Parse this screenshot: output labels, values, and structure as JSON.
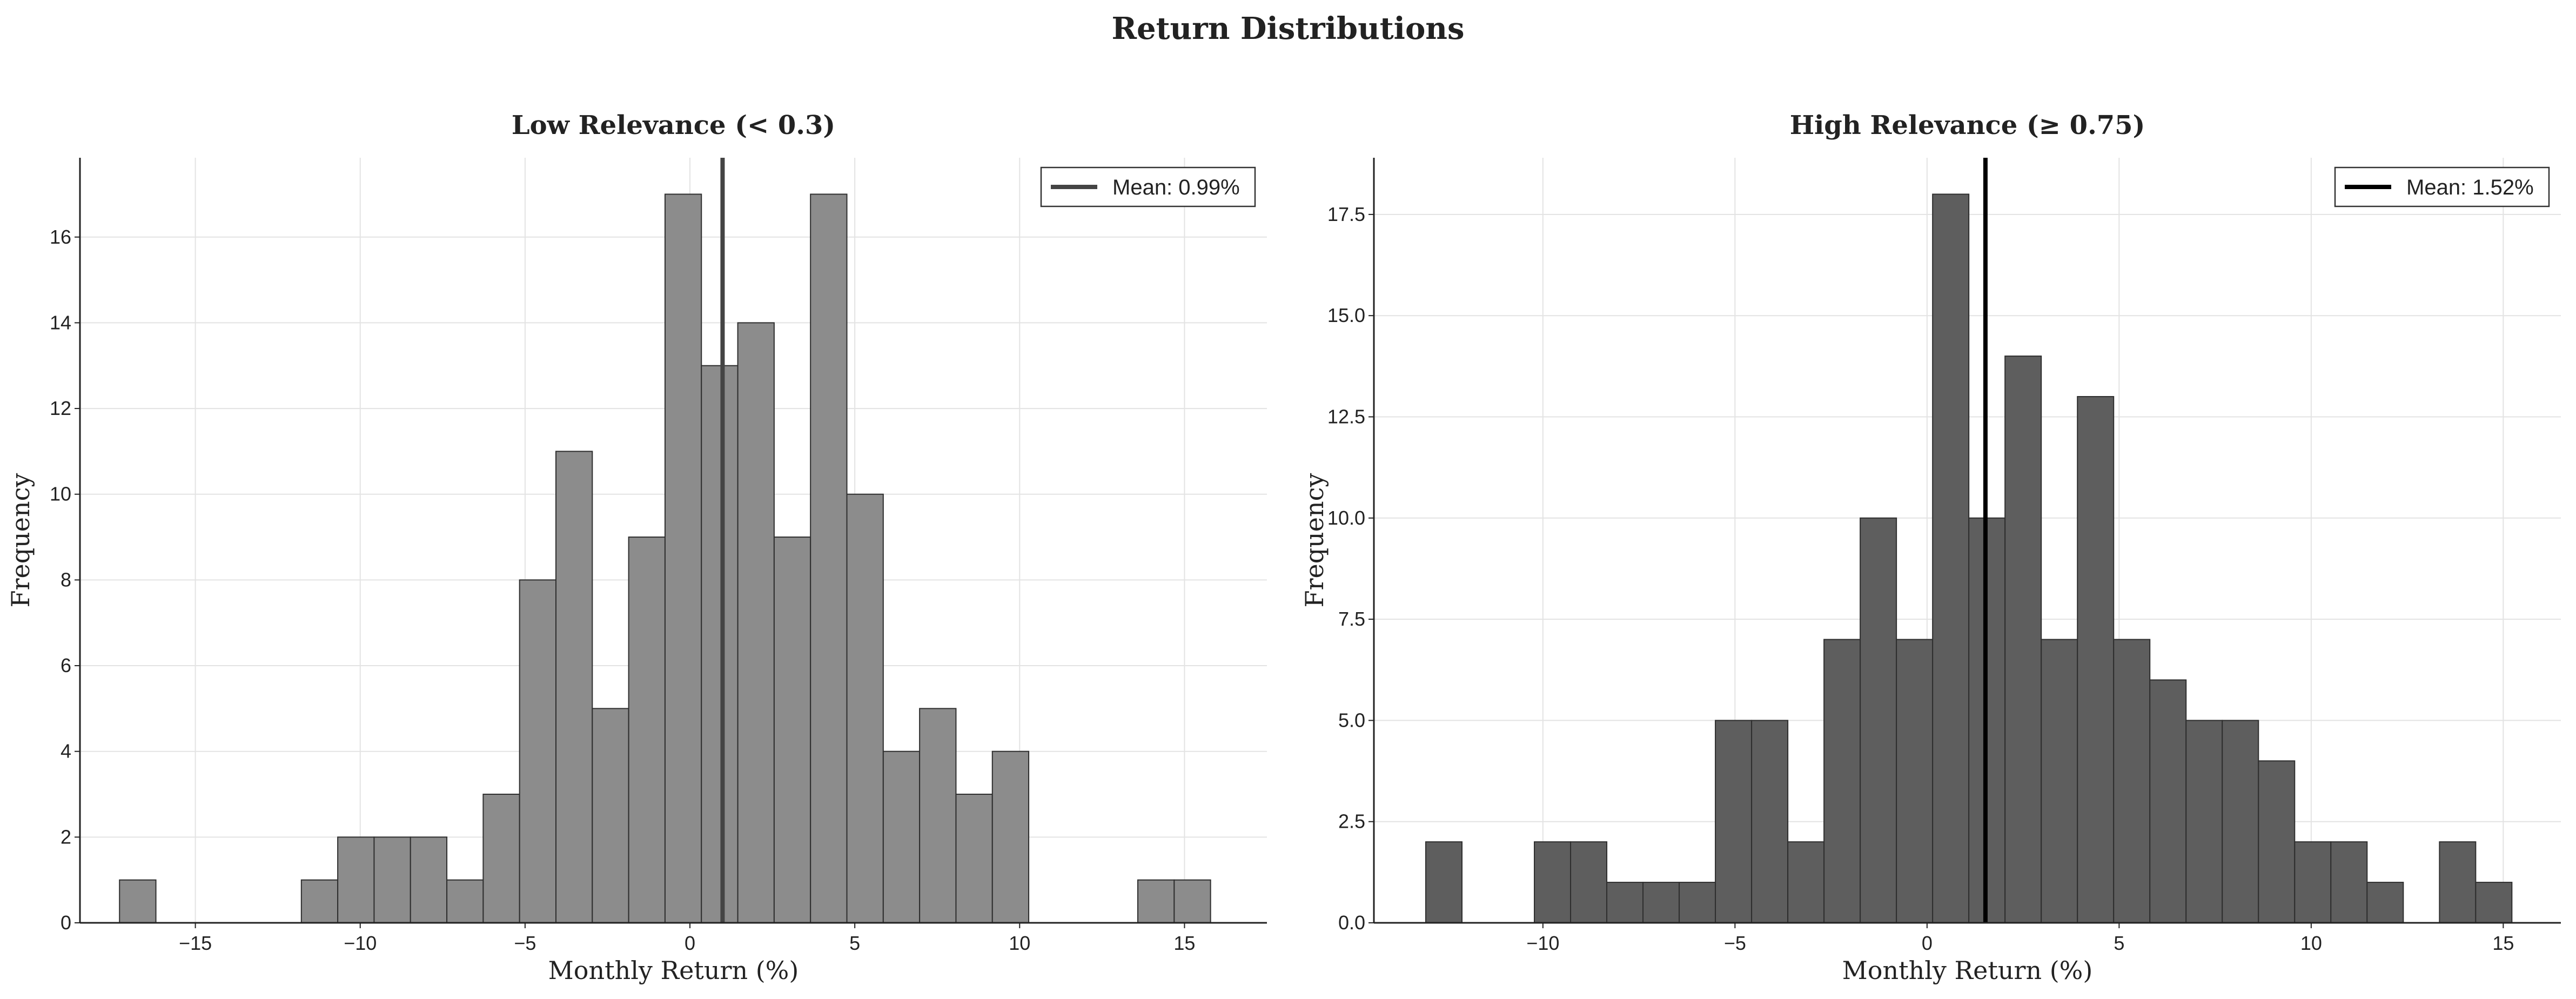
{
  "figure": {
    "title": "Return Distributions"
  },
  "colors": {
    "low_bar": "#8c8c8c",
    "high_bar": "#5e5e5e",
    "bar_edge": "#2e2e2e",
    "low_mean_line": "#444444",
    "high_mean_line": "#000000"
  },
  "chart_data": [
    {
      "type": "bar",
      "subtype": "histogram",
      "title": "Low Relevance (< 0.3)",
      "xlabel": "Monthly Return (%)",
      "ylabel": "Frequency",
      "xlim": [
        -18.5,
        17.5
      ],
      "ylim": [
        0,
        17.85
      ],
      "xticks": [
        -15,
        -10,
        -5,
        0,
        5,
        10,
        15
      ],
      "xtick_labels": [
        "−15",
        "−10",
        "−5",
        "0",
        "5",
        "10",
        "15"
      ],
      "yticks": [
        0,
        2,
        4,
        6,
        8,
        10,
        12,
        14,
        16
      ],
      "ytick_labels": [
        "0",
        "2",
        "4",
        "6",
        "8",
        "10",
        "12",
        "14",
        "16"
      ],
      "bin_start": -17.3,
      "bin_width": 1.103,
      "counts": [
        1,
        0,
        0,
        0,
        0,
        1,
        2,
        2,
        2,
        1,
        3,
        8,
        11,
        5,
        9,
        17,
        13,
        14,
        9,
        17,
        10,
        4,
        5,
        3,
        4,
        0,
        0,
        0,
        1,
        1
      ],
      "mean": 0.99,
      "legend": {
        "label": "Mean: 0.99%",
        "position": "top-right"
      },
      "grid": true
    },
    {
      "type": "bar",
      "subtype": "histogram",
      "title": "High Relevance (≥ 0.75)",
      "xlabel": "Monthly Return (%)",
      "ylabel": "Frequency",
      "xlim": [
        -14.4,
        16.5
      ],
      "ylim": [
        0,
        18.9
      ],
      "xticks": [
        -10,
        -5,
        0,
        5,
        10,
        15
      ],
      "xtick_labels": [
        "−10",
        "−5",
        "0",
        "5",
        "10",
        "15"
      ],
      "yticks": [
        0,
        2.5,
        5,
        7.5,
        10,
        12.5,
        15,
        17.5
      ],
      "ytick_labels": [
        "0.0",
        "2.5",
        "5.0",
        "7.5",
        "10.0",
        "12.5",
        "15.0",
        "17.5"
      ],
      "bin_start": -13.05,
      "bin_width": 0.9425,
      "counts": [
        2,
        0,
        0,
        2,
        2,
        1,
        1,
        1,
        5,
        5,
        2,
        7,
        10,
        7,
        18,
        10,
        14,
        7,
        13,
        7,
        6,
        5,
        5,
        4,
        2,
        2,
        1,
        0,
        2,
        1
      ],
      "mean": 1.52,
      "legend": {
        "label": "Mean: 1.52%",
        "position": "top-right"
      },
      "grid": true
    }
  ]
}
